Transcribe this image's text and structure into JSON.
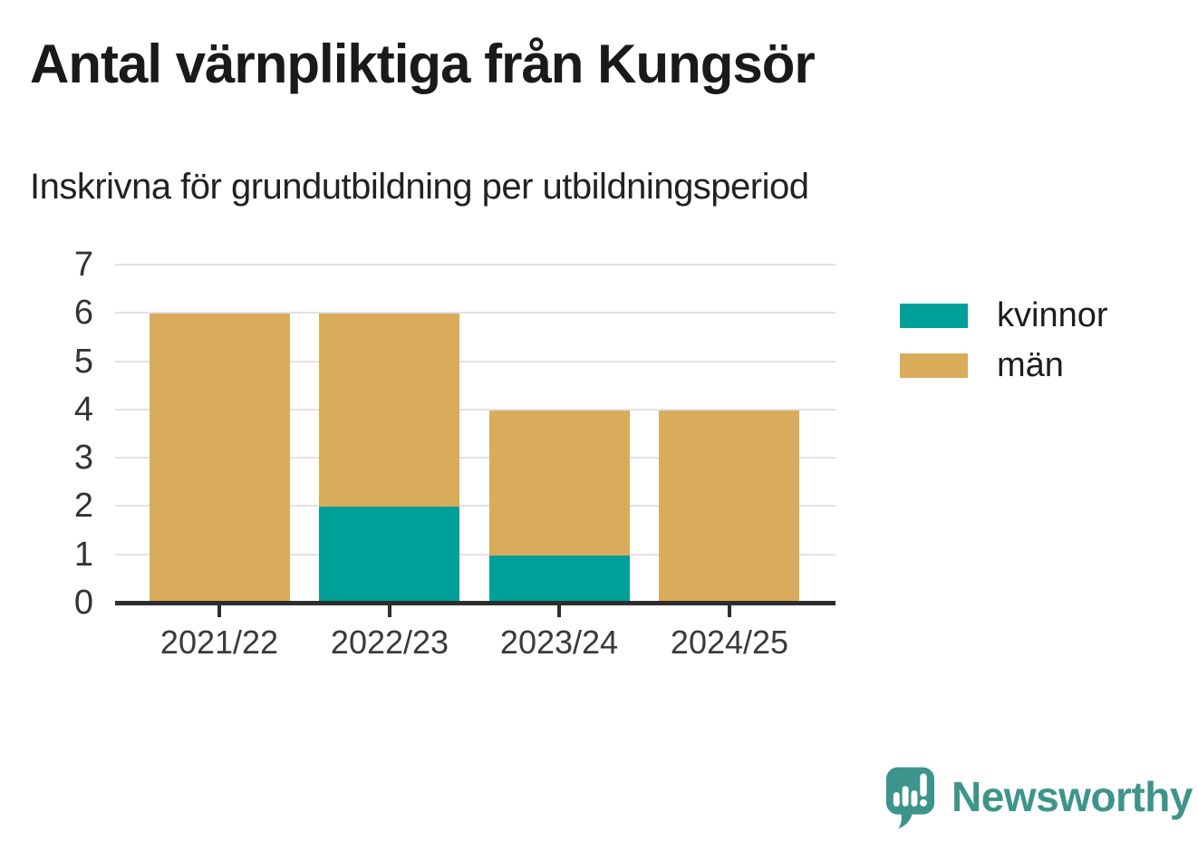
{
  "header": {
    "title": "Antal värnpliktiga från Kungsör",
    "subtitle": "Inskrivna för grundutbildning per utbildningsperiod"
  },
  "chart_data": {
    "type": "bar",
    "stacked": true,
    "title": "Antal värnpliktiga från Kungsör",
    "subtitle": "Inskrivna för grundutbildning per utbildningsperiod",
    "categories": [
      "2021/22",
      "2022/23",
      "2023/24",
      "2024/25"
    ],
    "series": [
      {
        "name": "kvinnor",
        "color": "#00a09a",
        "values": [
          0,
          2,
          1,
          0
        ]
      },
      {
        "name": "män",
        "color": "#d9ac5b",
        "values": [
          6,
          4,
          3,
          4
        ]
      }
    ],
    "totals": [
      6,
      6,
      4,
      4
    ],
    "xlabel": "",
    "ylabel": "",
    "ylim": [
      0,
      7
    ],
    "yticks": [
      0,
      1,
      2,
      3,
      4,
      5,
      6,
      7
    ],
    "grid": true,
    "gridline_color": "#e2e2e2",
    "axis_color": "#2d2d2d",
    "legend_position": "right"
  },
  "legend": {
    "items": [
      {
        "label": "kvinnor",
        "color": "#00a09a"
      },
      {
        "label": "män",
        "color": "#d9ac5b"
      }
    ]
  },
  "footer": {
    "brand": "Newsworthy",
    "brand_color": "#3e948b",
    "icon": "newsworthy-speech-bubble-barchart-icon"
  }
}
